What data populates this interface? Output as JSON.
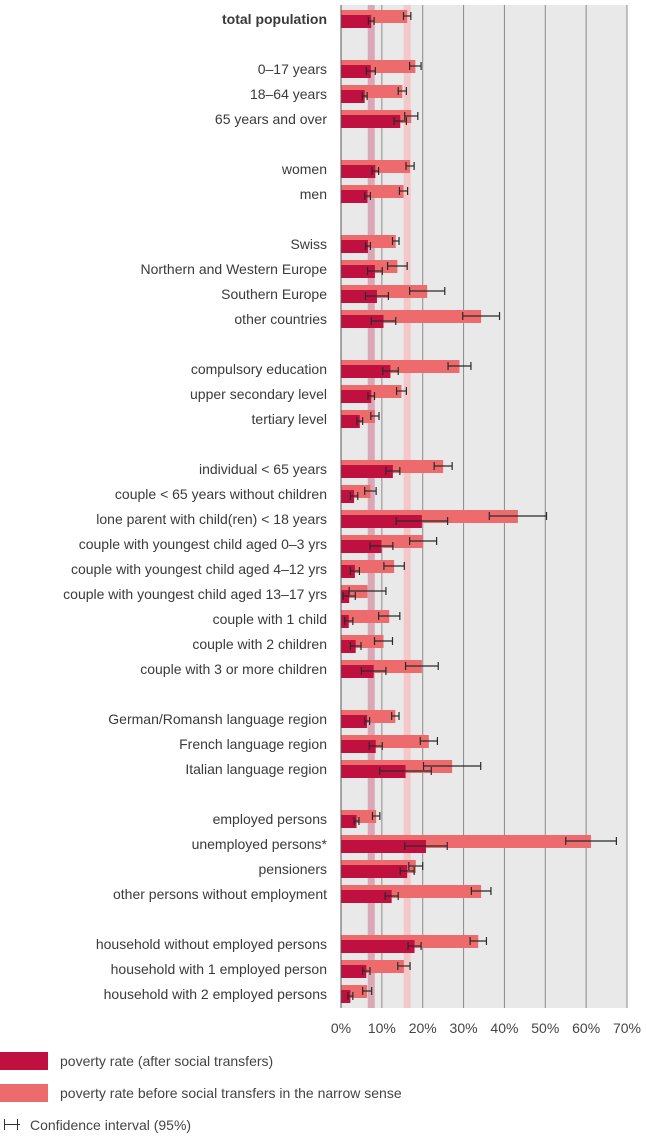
{
  "colors": {
    "after_transfers": "#c0103f",
    "before_transfers": "#ee6b6d",
    "total_after_band": "#d9a7b5",
    "total_before_band": "#f4c8c9",
    "plot_background": "#e9e9e9",
    "grid": "#8a8a8a"
  },
  "chart_data": {
    "type": "bar",
    "orientation": "horizontal",
    "xlim": [
      0,
      70
    ],
    "x_ticks": [
      "0%",
      "10%",
      "20%",
      "30%",
      "40%",
      "50%",
      "60%",
      "70%"
    ],
    "x_tick_values": [
      0,
      10,
      20,
      30,
      40,
      50,
      60,
      70
    ],
    "grid": true,
    "legend_position": "bottom-left",
    "reference_bands": {
      "after_total": 7.4,
      "before_total": 16.2
    },
    "groups": [
      {
        "rows": [
          {
            "label": "total population",
            "bold": true,
            "after": 7.4,
            "after_ci": [
              6.7,
              8.1
            ],
            "before": 16.2,
            "before_ci": [
              15.3,
              17.1
            ]
          }
        ]
      },
      {
        "rows": [
          {
            "label": "0–17 years",
            "after": 7.3,
            "after_ci": [
              6.2,
              8.4
            ],
            "before": 18.2,
            "before_ci": [
              16.8,
              19.6
            ]
          },
          {
            "label": "18–64 years",
            "after": 5.8,
            "after_ci": [
              5.2,
              6.4
            ],
            "before": 15.0,
            "before_ci": [
              14.0,
              16.0
            ]
          },
          {
            "label": "65 years and over",
            "after": 14.5,
            "after_ci": [
              13.0,
              16.0
            ],
            "before": 17.2,
            "before_ci": [
              15.6,
              18.8
            ]
          }
        ]
      },
      {
        "rows": [
          {
            "label": "women",
            "after": 8.4,
            "after_ci": [
              7.6,
              9.2
            ],
            "before": 16.9,
            "before_ci": [
              15.9,
              17.9
            ]
          },
          {
            "label": "men",
            "after": 6.5,
            "after_ci": [
              5.8,
              7.2
            ],
            "before": 15.3,
            "before_ci": [
              14.3,
              16.3
            ]
          }
        ]
      },
      {
        "rows": [
          {
            "label": "Swiss",
            "after": 6.6,
            "after_ci": [
              6.0,
              7.2
            ],
            "before": 13.4,
            "before_ci": [
              12.6,
              14.2
            ]
          },
          {
            "label": "Northern and Western Europe",
            "after": 8.3,
            "after_ci": [
              6.5,
              10.1
            ],
            "before": 13.8,
            "before_ci": [
              11.4,
              16.2
            ]
          },
          {
            "label": "Southern Europe",
            "after": 8.8,
            "after_ci": [
              6.0,
              11.6
            ],
            "before": 21.1,
            "before_ci": [
              16.8,
              25.4
            ]
          },
          {
            "label": "other countries",
            "after": 10.4,
            "after_ci": [
              7.4,
              13.4
            ],
            "before": 34.3,
            "before_ci": [
              29.8,
              38.8
            ]
          }
        ]
      },
      {
        "rows": [
          {
            "label": "compulsory education",
            "after": 12.1,
            "after_ci": [
              10.2,
              14.0
            ],
            "before": 29.0,
            "before_ci": [
              26.2,
              31.8
            ]
          },
          {
            "label": "upper secondary level",
            "after": 7.4,
            "after_ci": [
              6.6,
              8.2
            ],
            "before": 14.8,
            "before_ci": [
              13.6,
              16.0
            ]
          },
          {
            "label": "tertiary level",
            "after": 4.6,
            "after_ci": [
              3.9,
              5.3
            ],
            "before": 8.3,
            "before_ci": [
              7.3,
              9.3
            ]
          }
        ]
      },
      {
        "rows": [
          {
            "label": "individual < 65 years",
            "after": 12.7,
            "after_ci": [
              11.0,
              14.4
            ],
            "before": 25.0,
            "before_ci": [
              22.8,
              27.2
            ]
          },
          {
            "label": "couple < 65 years without children",
            "after": 3.2,
            "after_ci": [
              2.3,
              4.1
            ],
            "before": 7.2,
            "before_ci": [
              5.8,
              8.6
            ]
          },
          {
            "label": "lone parent with child(ren) < 18 years",
            "after": 19.8,
            "after_ci": [
              13.5,
              26.1
            ],
            "before": 43.3,
            "before_ci": [
              36.3,
              50.3
            ]
          },
          {
            "label": "couple with youngest child aged 0–3 yrs",
            "after": 9.9,
            "after_ci": [
              7.1,
              12.7
            ],
            "before": 20.1,
            "before_ci": [
              16.8,
              23.4
            ]
          },
          {
            "label": "couple with youngest child aged 4–12 yrs",
            "after": 3.4,
            "after_ci": [
              2.3,
              4.5
            ],
            "before": 13.0,
            "before_ci": [
              10.5,
              15.5
            ]
          },
          {
            "label": "couple with youngest child aged 13–17 yrs",
            "after": 2.0,
            "after_ci": [
              0.5,
              3.5
            ],
            "before": 6.5,
            "before_ci": [
              2.0,
              11.0
            ]
          },
          {
            "label": "couple with 1 child",
            "after": 1.9,
            "after_ci": [
              0.9,
              2.9
            ],
            "before": 11.8,
            "before_ci": [
              9.2,
              14.4
            ]
          },
          {
            "label": "couple with 2 children",
            "after": 3.6,
            "after_ci": [
              2.3,
              4.9
            ],
            "before": 10.4,
            "before_ci": [
              8.2,
              12.6
            ]
          },
          {
            "label": "couple with 3 or more children",
            "after": 8.0,
            "after_ci": [
              5.0,
              11.0
            ],
            "before": 19.8,
            "before_ci": [
              15.8,
              23.8
            ]
          }
        ]
      },
      {
        "rows": [
          {
            "label": "German/Romansh language region",
            "after": 6.4,
            "after_ci": [
              5.8,
              7.0
            ],
            "before": 13.3,
            "before_ci": [
              12.4,
              14.2
            ]
          },
          {
            "label": "French language region",
            "after": 8.5,
            "after_ci": [
              6.9,
              10.1
            ],
            "before": 21.5,
            "before_ci": [
              19.4,
              23.6
            ]
          },
          {
            "label": "Italian language region",
            "after": 15.8,
            "after_ci": [
              9.5,
              22.1
            ],
            "before": 27.2,
            "before_ci": [
              20.2,
              34.2
            ]
          }
        ]
      },
      {
        "rows": [
          {
            "label": "employed persons",
            "after": 3.8,
            "after_ci": [
              3.2,
              4.4
            ],
            "before": 8.6,
            "before_ci": [
              7.7,
              9.5
            ]
          },
          {
            "label": "unemployed persons*",
            "after": 20.8,
            "after_ci": [
              15.6,
              26.0
            ],
            "before": 61.2,
            "before_ci": [
              55.0,
              67.4
            ]
          },
          {
            "label": "pensioners",
            "after": 16.2,
            "after_ci": [
              14.5,
              17.9
            ],
            "before": 18.3,
            "before_ci": [
              16.6,
              20.0
            ]
          },
          {
            "label": "other persons without employment",
            "after": 12.4,
            "after_ci": [
              10.8,
              14.0
            ],
            "before": 34.3,
            "before_ci": [
              31.9,
              36.7
            ]
          }
        ]
      },
      {
        "rows": [
          {
            "label": "household without employed persons",
            "after": 18.0,
            "after_ci": [
              16.4,
              19.6
            ],
            "before": 33.6,
            "before_ci": [
              31.6,
              35.6
            ]
          },
          {
            "label": "household with 1 employed person",
            "after": 6.2,
            "after_ci": [
              5.3,
              7.1
            ],
            "before": 15.4,
            "before_ci": [
              13.9,
              16.9
            ]
          },
          {
            "label": "household with 2 employed persons",
            "after": 2.3,
            "after_ci": [
              1.7,
              2.9
            ],
            "before": 6.4,
            "before_ci": [
              5.3,
              7.5
            ]
          }
        ]
      }
    ],
    "legend": {
      "after": "poverty rate (after social transfers)",
      "before": "poverty rate before social transfers in the narrow sense",
      "ci": "Confidence interval (95%)"
    }
  }
}
